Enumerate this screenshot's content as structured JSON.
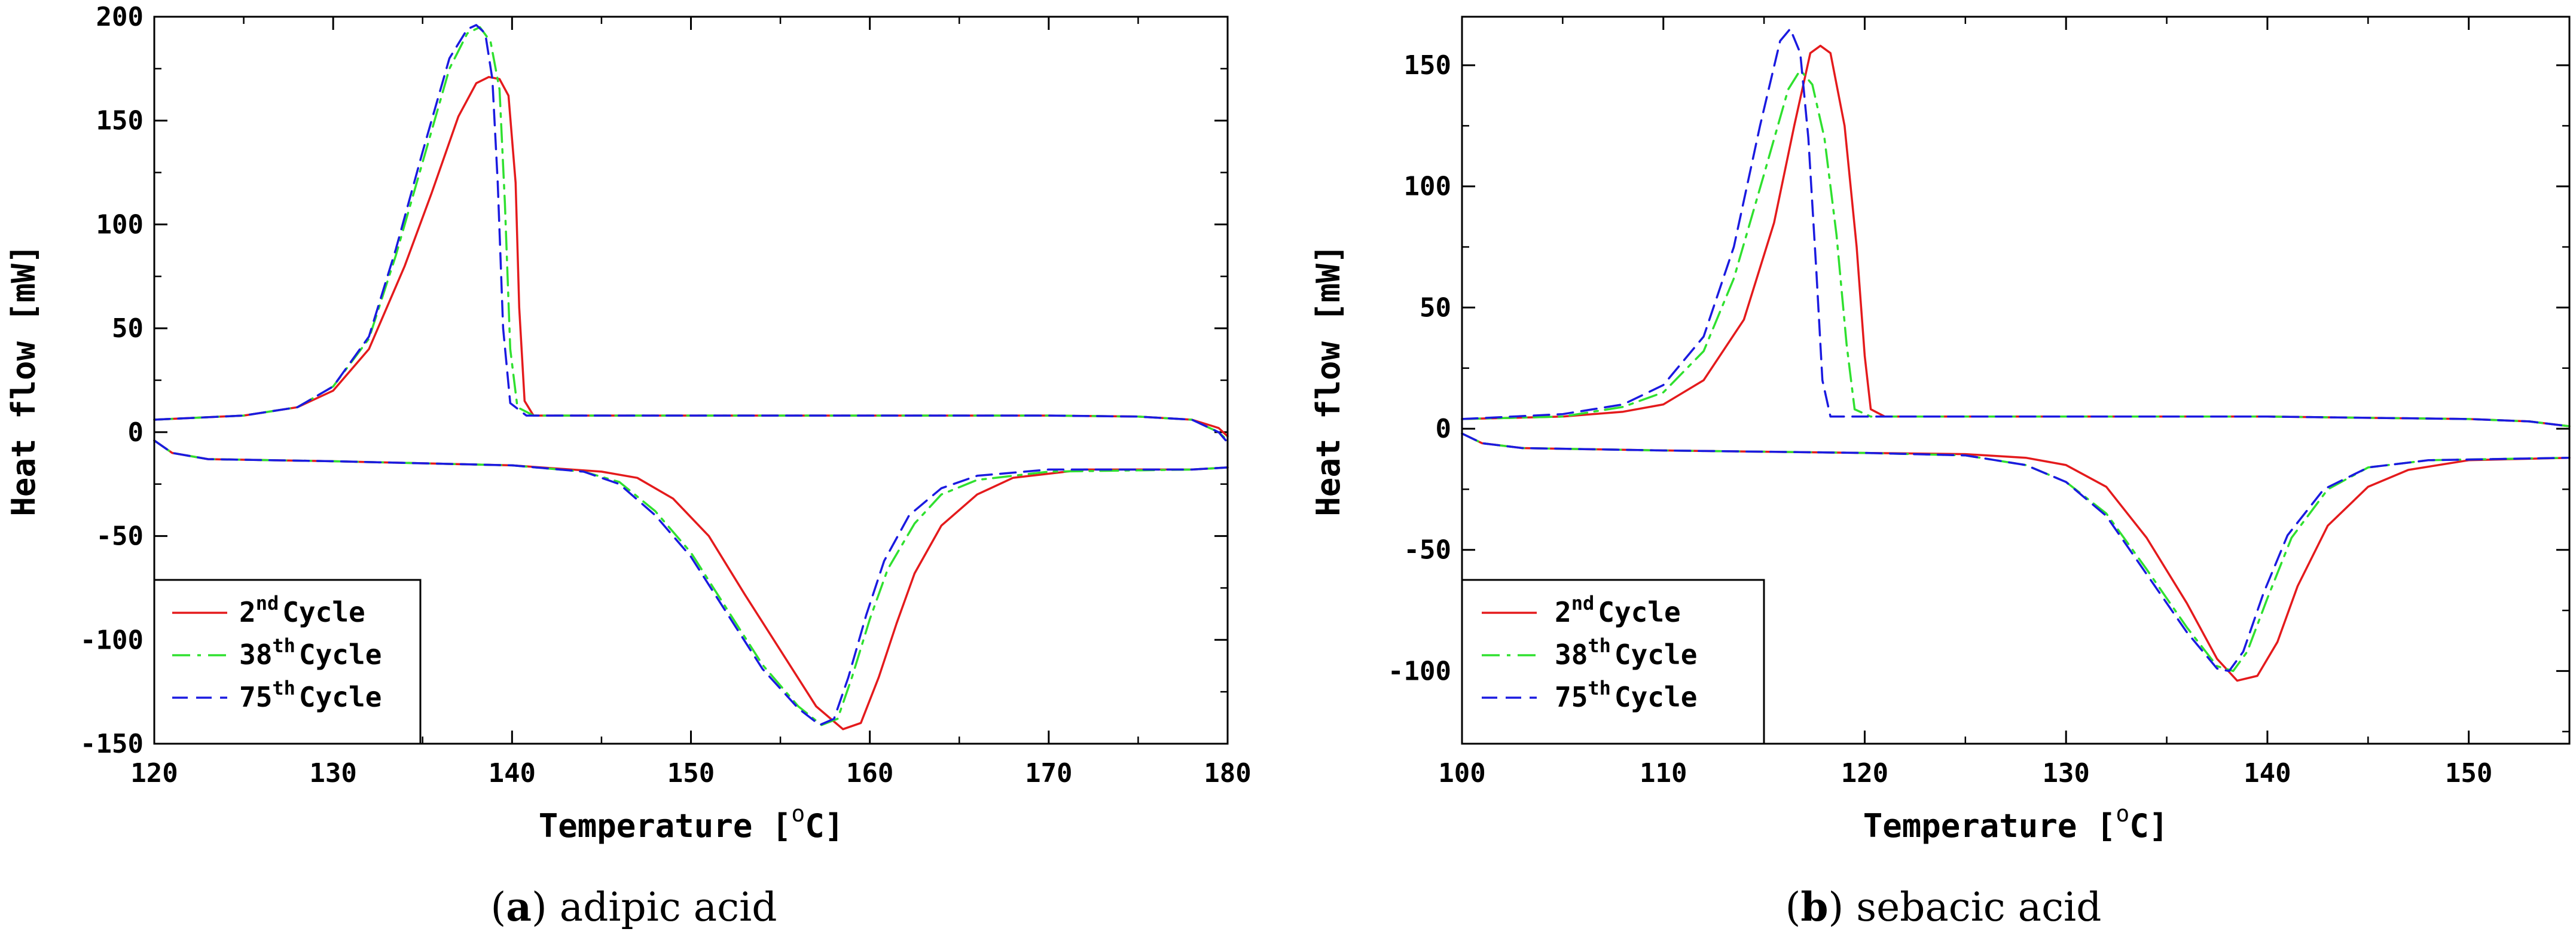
{
  "chart_data": [
    {
      "type": "line",
      "id": "a",
      "caption_letter": "a",
      "caption_text": "adipic acid",
      "xlabel_main": "Temperature [",
      "xlabel_unit": "C]",
      "ylabel": "Heat flow [mW]",
      "xlim": [
        120,
        180
      ],
      "ylim": [
        -150,
        200
      ],
      "xticks": [
        120,
        130,
        140,
        150,
        160,
        170,
        180
      ],
      "yticks": [
        -150,
        -100,
        -50,
        0,
        50,
        100,
        150,
        200
      ],
      "series": [
        {
          "name": "2nd Cycle",
          "legend_num": "2",
          "legend_sup": "nd",
          "legend_word": "Cycle",
          "color": "#e41a1c",
          "dash": "solid",
          "upper": [
            [
              120,
              6
            ],
            [
              125,
              8
            ],
            [
              128,
              12
            ],
            [
              130,
              20
            ],
            [
              132,
              40
            ],
            [
              134,
              80
            ],
            [
              135.5,
              115
            ],
            [
              137,
              152
            ],
            [
              138,
              168
            ],
            [
              138.7,
              171
            ],
            [
              139.3,
              170
            ],
            [
              139.8,
              162
            ],
            [
              140.2,
              120
            ],
            [
              140.4,
              60
            ],
            [
              140.7,
              15
            ],
            [
              141.2,
              8
            ],
            [
              150,
              8
            ],
            [
              160,
              8
            ],
            [
              170,
              8
            ],
            [
              175,
              7.5
            ],
            [
              178,
              6
            ],
            [
              179.5,
              2
            ],
            [
              180,
              -2
            ]
          ],
          "lower": [
            [
              120,
              -4
            ],
            [
              121,
              -10
            ],
            [
              123,
              -13
            ],
            [
              130,
              -14
            ],
            [
              140,
              -16
            ],
            [
              145,
              -19
            ],
            [
              147,
              -22
            ],
            [
              149,
              -32
            ],
            [
              151,
              -50
            ],
            [
              153,
              -78
            ],
            [
              155,
              -105
            ],
            [
              157,
              -132
            ],
            [
              158.5,
              -143
            ],
            [
              159.5,
              -140
            ],
            [
              160.5,
              -118
            ],
            [
              161.5,
              -92
            ],
            [
              162.5,
              -68
            ],
            [
              164,
              -45
            ],
            [
              166,
              -30
            ],
            [
              168,
              -22
            ],
            [
              172,
              -18
            ],
            [
              178,
              -18
            ],
            [
              180,
              -17
            ]
          ]
        },
        {
          "name": "38th Cycle",
          "legend_num": "38",
          "legend_sup": "th",
          "legend_word": "Cycle",
          "color": "#2fe02f",
          "dash": "dashdot",
          "upper": [
            [
              120,
              6
            ],
            [
              125,
              8
            ],
            [
              128,
              12
            ],
            [
              130,
              22
            ],
            [
              132,
              45
            ],
            [
              133.5,
              85
            ],
            [
              135,
              130
            ],
            [
              136.5,
              175
            ],
            [
              137.5,
              192
            ],
            [
              138.2,
              195
            ],
            [
              138.8,
              188
            ],
            [
              139.3,
              165
            ],
            [
              139.6,
              110
            ],
            [
              139.9,
              40
            ],
            [
              140.3,
              12
            ],
            [
              141.2,
              8
            ],
            [
              150,
              8
            ],
            [
              160,
              8
            ],
            [
              170,
              8
            ],
            [
              175,
              7.5
            ],
            [
              178,
              6
            ],
            [
              179.5,
              0
            ],
            [
              180,
              -4
            ]
          ],
          "lower": [
            [
              120,
              -4
            ],
            [
              121,
              -10
            ],
            [
              123,
              -13
            ],
            [
              130,
              -14
            ],
            [
              140,
              -16
            ],
            [
              144,
              -19
            ],
            [
              146,
              -24
            ],
            [
              148,
              -38
            ],
            [
              150,
              -58
            ],
            [
              152,
              -85
            ],
            [
              154,
              -112
            ],
            [
              156,
              -132
            ],
            [
              157.3,
              -141
            ],
            [
              158.2,
              -138
            ],
            [
              159,
              -118
            ],
            [
              160,
              -90
            ],
            [
              161,
              -66
            ],
            [
              162.5,
              -44
            ],
            [
              164,
              -30
            ],
            [
              166,
              -23
            ],
            [
              170,
              -19
            ],
            [
              178,
              -18
            ],
            [
              180,
              -17
            ]
          ]
        },
        {
          "name": "75th Cycle",
          "legend_num": "75",
          "legend_sup": "th",
          "legend_word": "Cycle",
          "color": "#1a1ae0",
          "dash": "dashed",
          "upper": [
            [
              120,
              6
            ],
            [
              125,
              8
            ],
            [
              128,
              12
            ],
            [
              130,
              22
            ],
            [
              132,
              46
            ],
            [
              133.5,
              88
            ],
            [
              135,
              135
            ],
            [
              136.5,
              180
            ],
            [
              137.5,
              194
            ],
            [
              138,
              196
            ],
            [
              138.5,
              192
            ],
            [
              138.9,
              170
            ],
            [
              139.2,
              120
            ],
            [
              139.5,
              50
            ],
            [
              139.9,
              14
            ],
            [
              140.8,
              8
            ],
            [
              150,
              8
            ],
            [
              160,
              8
            ],
            [
              170,
              8
            ],
            [
              175,
              7.5
            ],
            [
              178,
              6
            ],
            [
              179.5,
              0
            ],
            [
              180,
              -5
            ]
          ],
          "lower": [
            [
              120,
              -4
            ],
            [
              121,
              -10
            ],
            [
              123,
              -13
            ],
            [
              130,
              -14
            ],
            [
              140,
              -16
            ],
            [
              144,
              -19
            ],
            [
              146,
              -25
            ],
            [
              148,
              -40
            ],
            [
              150,
              -60
            ],
            [
              152,
              -87
            ],
            [
              154,
              -114
            ],
            [
              156,
              -133
            ],
            [
              157.2,
              -141
            ],
            [
              158,
              -138
            ],
            [
              158.8,
              -118
            ],
            [
              159.8,
              -88
            ],
            [
              160.8,
              -62
            ],
            [
              162.2,
              -40
            ],
            [
              164,
              -27
            ],
            [
              166,
              -21
            ],
            [
              170,
              -18
            ],
            [
              178,
              -18
            ],
            [
              180,
              -17
            ]
          ]
        }
      ]
    },
    {
      "type": "line",
      "id": "b",
      "caption_letter": "b",
      "caption_text": "sebacic acid",
      "xlabel_main": "Temperature [",
      "xlabel_unit": "C]",
      "ylabel": "Heat flow [mW]",
      "xlim": [
        100,
        155
      ],
      "ylim": [
        -130,
        170
      ],
      "xticks": [
        100,
        110,
        120,
        130,
        140,
        150
      ],
      "yticks": [
        -100,
        -50,
        0,
        50,
        100,
        150
      ],
      "series": [
        {
          "name": "2nd Cycle",
          "legend_num": "2",
          "legend_sup": "nd",
          "legend_word": "Cycle",
          "color": "#e41a1c",
          "dash": "solid",
          "upper": [
            [
              100,
              4
            ],
            [
              105,
              5
            ],
            [
              108,
              7
            ],
            [
              110,
              10
            ],
            [
              112,
              20
            ],
            [
              114,
              45
            ],
            [
              115.5,
              85
            ],
            [
              116.5,
              125
            ],
            [
              117.3,
              155
            ],
            [
              117.8,
              158
            ],
            [
              118.3,
              155
            ],
            [
              119,
              125
            ],
            [
              119.6,
              75
            ],
            [
              120,
              30
            ],
            [
              120.3,
              8
            ],
            [
              121,
              5
            ],
            [
              130,
              5
            ],
            [
              140,
              5
            ],
            [
              150,
              4
            ],
            [
              153,
              3
            ],
            [
              155,
              1
            ]
          ],
          "lower": [
            [
              100,
              -2
            ],
            [
              101,
              -6
            ],
            [
              103,
              -8
            ],
            [
              110,
              -9
            ],
            [
              120,
              -10
            ],
            [
              125,
              -10.5
            ],
            [
              128,
              -12
            ],
            [
              130,
              -15
            ],
            [
              132,
              -24
            ],
            [
              134,
              -45
            ],
            [
              136,
              -72
            ],
            [
              137.5,
              -95
            ],
            [
              138.5,
              -104
            ],
            [
              139.5,
              -102
            ],
            [
              140.5,
              -88
            ],
            [
              141.5,
              -65
            ],
            [
              143,
              -40
            ],
            [
              145,
              -24
            ],
            [
              147,
              -17
            ],
            [
              150,
              -13
            ],
            [
              155,
              -12
            ]
          ]
        },
        {
          "name": "38th Cycle",
          "legend_num": "38",
          "legend_sup": "th",
          "legend_word": "Cycle",
          "color": "#2fe02f",
          "dash": "dashdot",
          "upper": [
            [
              100,
              4
            ],
            [
              105,
              5
            ],
            [
              108,
              9
            ],
            [
              110,
              15
            ],
            [
              112,
              32
            ],
            [
              113.5,
              62
            ],
            [
              115,
              105
            ],
            [
              116.2,
              140
            ],
            [
              116.8,
              148
            ],
            [
              117.4,
              142
            ],
            [
              118,
              120
            ],
            [
              118.6,
              80
            ],
            [
              119.1,
              35
            ],
            [
              119.5,
              8
            ],
            [
              120.3,
              5
            ],
            [
              130,
              5
            ],
            [
              140,
              5
            ],
            [
              150,
              4
            ],
            [
              153,
              3
            ],
            [
              155,
              1
            ]
          ],
          "lower": [
            [
              100,
              -2
            ],
            [
              101,
              -6
            ],
            [
              103,
              -8
            ],
            [
              110,
              -9
            ],
            [
              120,
              -10
            ],
            [
              125,
              -11
            ],
            [
              128,
              -15
            ],
            [
              130,
              -22
            ],
            [
              132,
              -35
            ],
            [
              134,
              -58
            ],
            [
              136,
              -82
            ],
            [
              137.5,
              -98
            ],
            [
              138.3,
              -100
            ],
            [
              139,
              -92
            ],
            [
              140,
              -70
            ],
            [
              141.2,
              -45
            ],
            [
              143,
              -25
            ],
            [
              145,
              -16
            ],
            [
              148,
              -13
            ],
            [
              155,
              -12
            ]
          ]
        },
        {
          "name": "75th Cycle",
          "legend_num": "75",
          "legend_sup": "th",
          "legend_word": "Cycle",
          "color": "#1a1ae0",
          "dash": "dashed",
          "upper": [
            [
              100,
              4
            ],
            [
              105,
              6
            ],
            [
              108,
              10
            ],
            [
              110,
              18
            ],
            [
              112,
              38
            ],
            [
              113.5,
              75
            ],
            [
              114.8,
              125
            ],
            [
              115.8,
              160
            ],
            [
              116.3,
              165
            ],
            [
              116.8,
              155
            ],
            [
              117.2,
              120
            ],
            [
              117.6,
              65
            ],
            [
              117.9,
              20
            ],
            [
              118.3,
              5
            ],
            [
              119,
              5
            ],
            [
              130,
              5
            ],
            [
              140,
              5
            ],
            [
              150,
              4
            ],
            [
              153,
              3
            ],
            [
              155,
              1
            ]
          ],
          "lower": [
            [
              100,
              -2
            ],
            [
              101,
              -6
            ],
            [
              103,
              -8
            ],
            [
              110,
              -9
            ],
            [
              120,
              -10
            ],
            [
              125,
              -11
            ],
            [
              128,
              -15
            ],
            [
              130,
              -22
            ],
            [
              132,
              -36
            ],
            [
              134,
              -60
            ],
            [
              136,
              -84
            ],
            [
              137.5,
              -99
            ],
            [
              138.1,
              -100
            ],
            [
              138.8,
              -92
            ],
            [
              139.8,
              -68
            ],
            [
              141,
              -44
            ],
            [
              142.8,
              -25
            ],
            [
              145,
              -16
            ],
            [
              148,
              -13
            ],
            [
              155,
              -12
            ]
          ]
        }
      ]
    }
  ]
}
